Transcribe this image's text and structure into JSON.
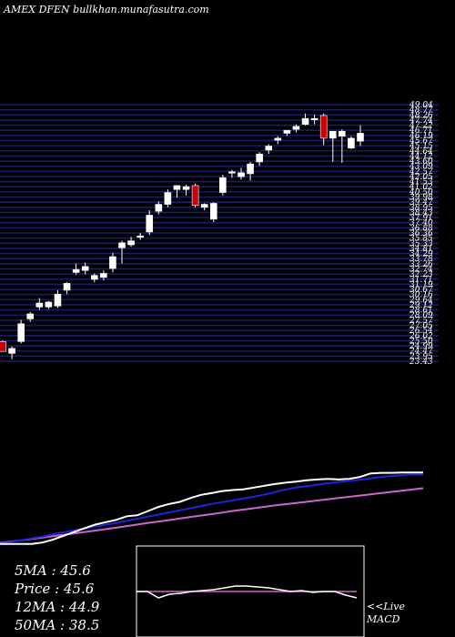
{
  "header": {
    "title": "AMEX  DFEN bullkhan.munafasutra.com"
  },
  "stats": [
    {
      "label": "5MA",
      "value": "45.6"
    },
    {
      "label": "Price",
      "value": "45.6"
    },
    {
      "label": "12MA",
      "value": "44.9"
    },
    {
      "label": "50MA",
      "value": "38.5"
    }
  ],
  "footer": {
    "live": "<<Live",
    "macd": "MACD"
  },
  "colors": {
    "background": "#000000",
    "grid_band": "#1a1a6e",
    "bull_candle": "#ffffff",
    "bear_candle": "#cc0000",
    "ma_short": "#ffffff",
    "ma_mid": "#2222dd",
    "ma_long": "#cc66cc",
    "macd_line": "#ffffff",
    "signal_line": "#cc66cc"
  },
  "chart_data": {
    "type": "candlestick",
    "ylim": [
      23,
      49
    ],
    "price_ticks": [
      "49.04",
      "48.77",
      "48.26",
      "47.74",
      "47.22",
      "46.71",
      "46.19",
      "45.67",
      "45.15",
      "44.64",
      "44.12",
      "43.60",
      "43.09",
      "42.57",
      "42.05",
      "41.53",
      "41.02",
      "40.50",
      "39.98",
      "39.47",
      "38.95",
      "38.43",
      "37.91",
      "37.40",
      "36.88",
      "36.36",
      "35.85",
      "35.33",
      "34.81",
      "34.29",
      "33.78",
      "33.26",
      "32.74",
      "32.23",
      "31.71",
      "31.19",
      "30.67",
      "30.16",
      "29.64",
      "29.12",
      "28.61",
      "28.09",
      "27.57",
      "27.05",
      "26.54",
      "26.02",
      "25.50",
      "24.99",
      "24.47",
      "23.95",
      "23.43"
    ],
    "candles": [
      {
        "o": 25.0,
        "h": 25.1,
        "l": 24.0,
        "c": 24.0,
        "up": false
      },
      {
        "o": 23.8,
        "h": 24.5,
        "l": 23.2,
        "c": 24.3,
        "up": true
      },
      {
        "o": 25.0,
        "h": 27.2,
        "l": 24.8,
        "c": 26.8,
        "up": true
      },
      {
        "o": 27.3,
        "h": 28.0,
        "l": 27.0,
        "c": 27.8,
        "up": true
      },
      {
        "o": 28.5,
        "h": 29.4,
        "l": 28.2,
        "c": 28.9,
        "up": true
      },
      {
        "o": 28.5,
        "h": 29.1,
        "l": 28.3,
        "c": 29.0,
        "up": true
      },
      {
        "o": 28.6,
        "h": 30.2,
        "l": 28.4,
        "c": 29.8,
        "up": true
      },
      {
        "o": 30.2,
        "h": 31.0,
        "l": 29.8,
        "c": 30.9,
        "up": true
      },
      {
        "o": 32.0,
        "h": 32.9,
        "l": 31.8,
        "c": 32.3,
        "up": true
      },
      {
        "o": 32.2,
        "h": 33.0,
        "l": 31.8,
        "c": 32.6,
        "up": true
      },
      {
        "o": 31.3,
        "h": 31.9,
        "l": 31.0,
        "c": 31.7,
        "up": true
      },
      {
        "o": 31.5,
        "h": 32.2,
        "l": 31.2,
        "c": 31.9,
        "up": true
      },
      {
        "o": 32.4,
        "h": 34.0,
        "l": 32.0,
        "c": 33.6,
        "up": true
      },
      {
        "o": 34.5,
        "h": 35.2,
        "l": 32.9,
        "c": 35.0,
        "up": true
      },
      {
        "o": 34.8,
        "h": 35.6,
        "l": 34.6,
        "c": 35.2,
        "up": true
      },
      {
        "o": 35.6,
        "h": 36.0,
        "l": 35.3,
        "c": 35.7,
        "up": true
      },
      {
        "o": 36.1,
        "h": 38.3,
        "l": 35.8,
        "c": 37.8,
        "up": true
      },
      {
        "o": 38.2,
        "h": 39.2,
        "l": 37.9,
        "c": 38.9,
        "up": true
      },
      {
        "o": 38.9,
        "h": 40.4,
        "l": 38.6,
        "c": 40.1,
        "up": true
      },
      {
        "o": 40.4,
        "h": 40.8,
        "l": 39.6,
        "c": 40.8,
        "up": true
      },
      {
        "o": 40.4,
        "h": 40.9,
        "l": 39.8,
        "c": 40.7,
        "up": true
      },
      {
        "o": 40.8,
        "h": 41.0,
        "l": 38.6,
        "c": 38.8,
        "up": false
      },
      {
        "o": 38.9,
        "h": 39.0,
        "l": 38.3,
        "c": 38.6,
        "up": true
      },
      {
        "o": 37.4,
        "h": 39.1,
        "l": 37.1,
        "c": 39.0,
        "up": true
      },
      {
        "o": 40.1,
        "h": 41.9,
        "l": 39.8,
        "c": 41.6,
        "up": true
      },
      {
        "o": 42.1,
        "h": 42.4,
        "l": 41.6,
        "c": 42.2,
        "up": true
      },
      {
        "o": 41.7,
        "h": 42.6,
        "l": 41.4,
        "c": 42.1,
        "up": true
      },
      {
        "o": 42.0,
        "h": 43.2,
        "l": 41.3,
        "c": 43.0,
        "up": true
      },
      {
        "o": 43.2,
        "h": 44.2,
        "l": 42.8,
        "c": 44.0,
        "up": true
      },
      {
        "o": 44.4,
        "h": 45.0,
        "l": 44.0,
        "c": 44.8,
        "up": true
      },
      {
        "o": 45.4,
        "h": 45.8,
        "l": 45.0,
        "c": 45.6,
        "up": true
      },
      {
        "o": 46.1,
        "h": 46.4,
        "l": 45.8,
        "c": 46.4,
        "up": true
      },
      {
        "o": 46.5,
        "h": 47.0,
        "l": 46.2,
        "c": 46.8,
        "up": true
      },
      {
        "o": 47.0,
        "h": 48.1,
        "l": 46.9,
        "c": 47.6,
        "up": true
      },
      {
        "o": 47.5,
        "h": 48.0,
        "l": 47.0,
        "c": 47.6,
        "up": true
      },
      {
        "o": 47.9,
        "h": 48.1,
        "l": 44.9,
        "c": 45.6,
        "up": false
      },
      {
        "o": 45.6,
        "h": 46.3,
        "l": 43.2,
        "c": 46.3,
        "up": true
      },
      {
        "o": 45.8,
        "h": 46.5,
        "l": 43.1,
        "c": 46.3,
        "up": true
      },
      {
        "o": 44.6,
        "h": 45.8,
        "l": 44.5,
        "c": 45.6,
        "up": true
      },
      {
        "o": 45.3,
        "h": 46.9,
        "l": 44.8,
        "c": 46.1,
        "up": true
      }
    ],
    "moving_averages": {
      "ma_short": [
        45.3,
        45.3,
        45.3,
        45.2,
        45.2,
        45.0,
        44.0,
        43.5,
        43.3,
        43.5,
        43.3,
        43.1,
        42.7,
        42.4,
        42.0,
        41.5,
        41.0,
        40.5,
        40.3,
        40.0,
        39.4,
        38.9,
        38.0,
        36.9,
        36.3,
        35.5,
        34.3,
        33.1,
        32.8,
        31.8,
        31.1,
        30.4,
        29.4,
        28.3,
        27.2,
        26.1,
        25.3,
        24.9,
        24.9,
        24.9,
        24.9
      ],
      "ma_mid": [
        44.7,
        44.7,
        44.4,
        44.0,
        43.5,
        43.0,
        42.6,
        42.1,
        41.5,
        41.0,
        40.2,
        39.2,
        38.4,
        37.7,
        37.0,
        36.3,
        35.5,
        34.7,
        33.9,
        33.1,
        32.3,
        31.5,
        30.7,
        30.1,
        29.3,
        28.6,
        27.8,
        27.0,
        26.3,
        25.6,
        25.0
      ],
      "ma_long": [
        40.8,
        40.1,
        39.4,
        38.7,
        38.0,
        37.3,
        36.6,
        35.9,
        35.1,
        34.3,
        33.4,
        32.6,
        31.7,
        30.9,
        30.0,
        29.1,
        28.3,
        27.5,
        26.7,
        25.9,
        25.2
      ]
    },
    "macd": {
      "macd_line": [
        0.0,
        0.0,
        -0.35,
        -0.15,
        -0.1,
        0.0,
        0.05,
        0.1,
        0.2,
        0.3,
        0.3,
        0.25,
        0.2,
        0.1,
        0.0,
        0.05,
        -0.05,
        0.0,
        0.0,
        -0.2,
        -0.35
      ],
      "signal_line": [
        0.0,
        0.0,
        0.0,
        0.0,
        0.0,
        0.0,
        0.0,
        0.0,
        0.0,
        0.0,
        0.0,
        0.0,
        0.0,
        0.0,
        0.0,
        0.0,
        0.0,
        0.0,
        0.0,
        0.0,
        0.0
      ]
    }
  }
}
